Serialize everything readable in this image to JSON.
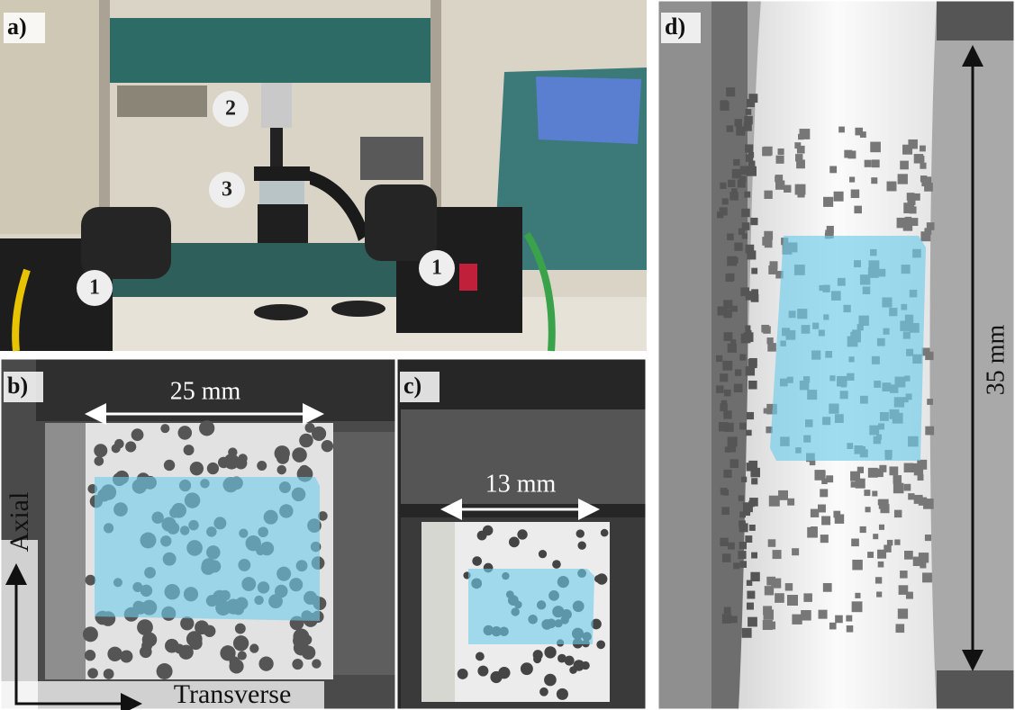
{
  "panels": [
    {
      "label": "a)",
      "markers": [
        "1",
        "2",
        "3",
        "1"
      ]
    },
    {
      "label": "b)",
      "dimension": "25 mm",
      "axes": {
        "vertical": "Axial",
        "horizontal": "Transverse"
      }
    },
    {
      "label": "c)",
      "dimension": "13 mm"
    },
    {
      "label": "d)",
      "dimension": "35 mm"
    }
  ]
}
